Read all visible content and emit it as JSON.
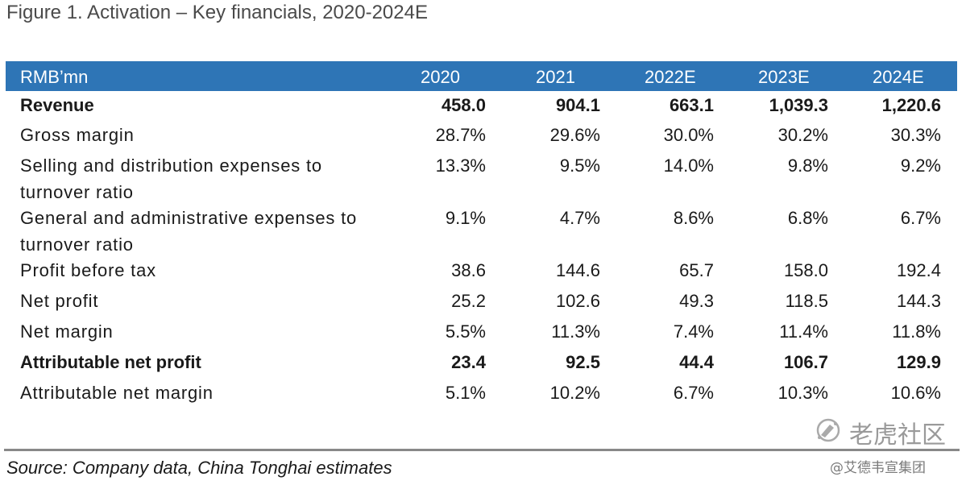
{
  "figure": {
    "title": "Figure 1. Activation – Key financials, 2020-2024E"
  },
  "table": {
    "unit_label": "RMB’mn",
    "columns": [
      "2020",
      "2021",
      "2022E",
      "2023E",
      "2024E"
    ],
    "rows": [
      {
        "label": "Revenue",
        "bold": true,
        "values": [
          "458.0",
          "904.1",
          "663.1",
          "1,039.3",
          "1,220.6"
        ]
      },
      {
        "label": "Gross margin",
        "bold": false,
        "values": [
          "28.7%",
          "29.6%",
          "30.0%",
          "30.2%",
          "30.3%"
        ]
      },
      {
        "label": "Selling and distribution expenses to turnover ratio",
        "bold": false,
        "values": [
          "13.3%",
          "9.5%",
          "14.0%",
          "9.8%",
          "9.2%"
        ]
      },
      {
        "label": "General and administrative expenses to turnover ratio",
        "bold": false,
        "values": [
          "9.1%",
          "4.7%",
          "8.6%",
          "6.8%",
          "6.7%"
        ]
      },
      {
        "label": "Profit before tax",
        "bold": false,
        "values": [
          "38.6",
          "144.6",
          "65.7",
          "158.0",
          "192.4"
        ]
      },
      {
        "label": "Net profit",
        "bold": false,
        "values": [
          "25.2",
          "102.6",
          "49.3",
          "118.5",
          "144.3"
        ]
      },
      {
        "label": "Net margin",
        "bold": false,
        "values": [
          "5.5%",
          "11.3%",
          "7.4%",
          "11.4%",
          "11.8%"
        ]
      },
      {
        "label": "Attributable net profit",
        "bold": true,
        "values": [
          "23.4",
          "92.5",
          "44.4",
          "106.7",
          "129.9"
        ]
      },
      {
        "label": "Attributable net margin",
        "bold": false,
        "values": [
          "5.1%",
          "10.2%",
          "6.7%",
          "10.3%",
          "10.6%"
        ]
      }
    ]
  },
  "source": "Source: Company data, China Tonghai estimates",
  "watermark": {
    "brand": "老虎社区",
    "handle": "@艾德韦宣集团"
  },
  "colors": {
    "header_bg": "#2e75b6",
    "header_text": "#ffffff",
    "rule": "#888888"
  }
}
